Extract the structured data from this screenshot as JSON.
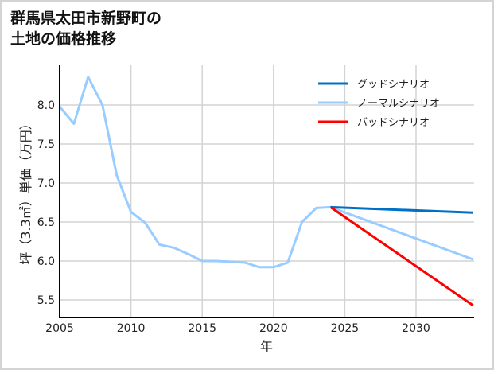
{
  "title": {
    "line1": "群馬県太田市新野町の",
    "line2": "土地の価格推移"
  },
  "colors": {
    "good": "#0070c6",
    "normal": "#99ccff",
    "bad": "#ff0000",
    "grid": "#d3d3d3",
    "axis": "#000000"
  },
  "legend": [
    {
      "label": "グッドシナリオ",
      "color": "#0070c6"
    },
    {
      "label": "ノーマルシナリオ",
      "color": "#99ccff"
    },
    {
      "label": "バッドシナリオ",
      "color": "#ff0000"
    }
  ],
  "axes": {
    "xlabel": "年",
    "ylabel": "坪（3.3㎡）単価（万円）",
    "xticks": [
      "2005",
      "2010",
      "2015",
      "2020",
      "2025",
      "2030"
    ],
    "yticks": [
      "5.5",
      "6.0",
      "6.5",
      "7.0",
      "7.5",
      "8.0"
    ]
  },
  "chart_data": {
    "type": "line",
    "title": "群馬県太田市新野町の土地の価格推移",
    "xlabel": "年",
    "ylabel": "坪（3.3㎡）単価（万円）",
    "xlim": [
      2005,
      2034
    ],
    "ylim": [
      5.28,
      8.5
    ],
    "grid": true,
    "legend_position": "upper right",
    "series": [
      {
        "name": "ノーマルシナリオ",
        "color": "#99ccff",
        "x": [
          2005,
          2006,
          2007,
          2008,
          2009,
          2010,
          2011,
          2012,
          2013,
          2014,
          2015,
          2016,
          2017,
          2018,
          2019,
          2020,
          2021,
          2022,
          2023,
          2024,
          2034
        ],
        "y": [
          7.98,
          7.76,
          8.36,
          8.0,
          7.1,
          6.63,
          6.49,
          6.21,
          6.17,
          6.09,
          6.0,
          6.0,
          5.99,
          5.98,
          5.92,
          5.92,
          5.98,
          6.5,
          6.68,
          6.69,
          6.02
        ]
      },
      {
        "name": "グッドシナリオ",
        "color": "#0070c6",
        "x": [
          2024,
          2034
        ],
        "y": [
          6.69,
          6.62
        ]
      },
      {
        "name": "バッドシナリオ",
        "color": "#ff0000",
        "x": [
          2024,
          2034
        ],
        "y": [
          6.69,
          5.43
        ]
      }
    ]
  }
}
